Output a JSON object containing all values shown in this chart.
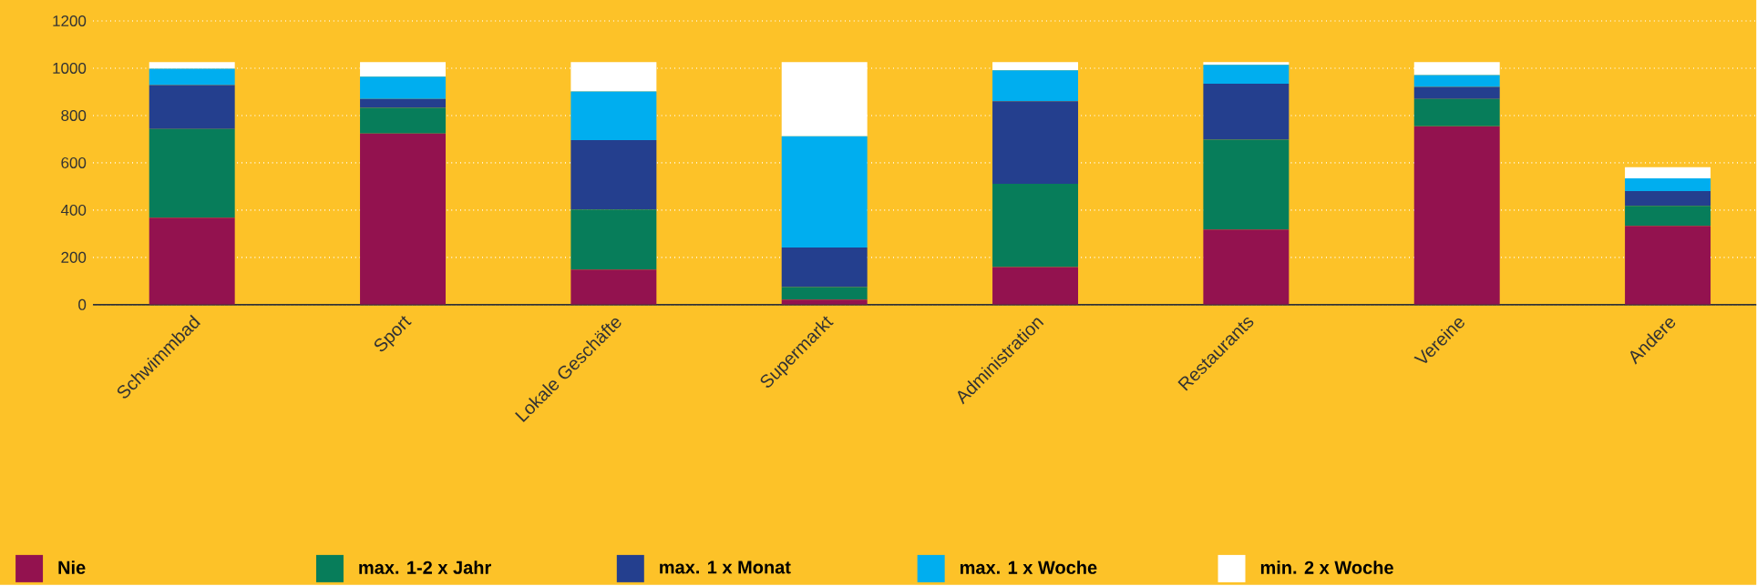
{
  "chart_data": {
    "type": "bar",
    "stacked": true,
    "categories": [
      "Schwimmbad",
      "Sport",
      "Lokale Geschäfte",
      "Supermarkt",
      "Administration",
      "Restaurants",
      "Vereine",
      "Andere"
    ],
    "series": [
      {
        "name": "Nie",
        "color": "#93124f",
        "values": [
          368,
          724,
          149,
          22,
          159,
          318,
          755,
          333
        ]
      },
      {
        "name": "max. 1-2 x Jahr",
        "color": "#077d5a",
        "values": [
          375,
          108,
          253,
          52,
          352,
          380,
          115,
          85
        ]
      },
      {
        "name": "max. 1 x Monat",
        "color": "#243f8e",
        "values": [
          186,
          38,
          294,
          168,
          349,
          236,
          51,
          62
        ]
      },
      {
        "name": "max. 1 x Woche",
        "color": "#00aeef",
        "values": [
          69,
          94,
          206,
          470,
          131,
          80,
          50,
          54
        ]
      },
      {
        "name": "min. 2 x Woche",
        "color": "#ffffff",
        "values": [
          28,
          62,
          124,
          314,
          35,
          12,
          55,
          47
        ]
      }
    ],
    "ylim": [
      0,
      1200
    ],
    "yticks": [
      0,
      200,
      400,
      600,
      800,
      1000,
      1200
    ],
    "grid": "y",
    "legend": "bottom"
  }
}
